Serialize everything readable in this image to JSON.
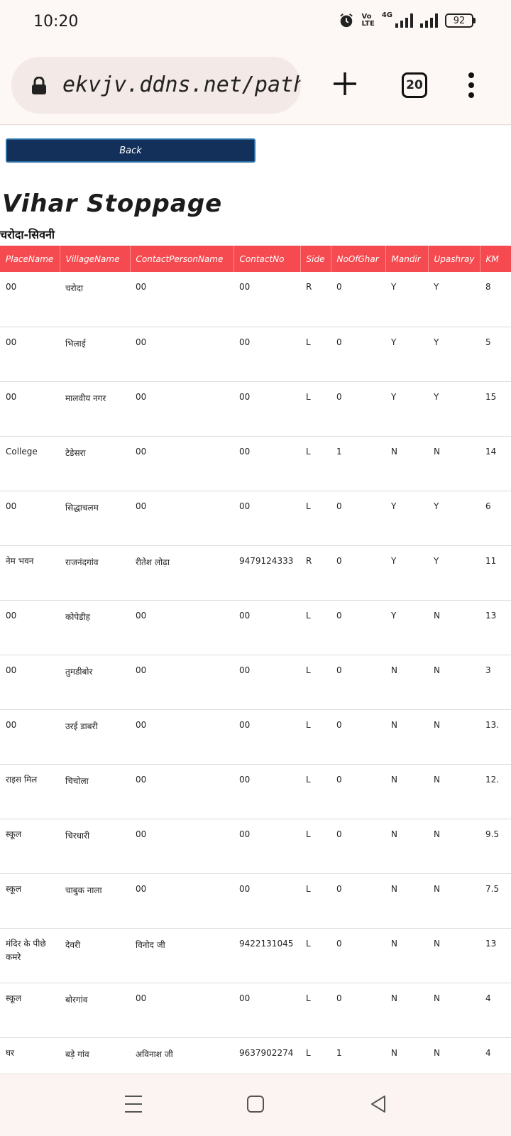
{
  "status_bar": {
    "time": "10:20",
    "volte": "Vo\nLTE",
    "network": "4G",
    "battery": "92",
    "icons": [
      "alarm-icon",
      "volte-icon",
      "signal-icon",
      "signal-icon",
      "battery-icon"
    ]
  },
  "browser": {
    "url": "ekvjv.ddns.net/pathshala",
    "tab_count": "20",
    "icons": [
      "lock-icon",
      "plus-icon",
      "tabs-icon",
      "more-vert-icon"
    ]
  },
  "page": {
    "back_label": "Back",
    "title": "Vihar Stoppage",
    "route": "चरोदा-सिवनी"
  },
  "table": {
    "headers": [
      "PlaceName",
      "VillageName",
      "ContactPersonName",
      "ContactNo",
      "Side",
      "NoOfGhar",
      "Mandir",
      "Upashray",
      "KM"
    ],
    "rows": [
      [
        "00",
        "चरोदा",
        "00",
        "00",
        "R",
        "0",
        "Y",
        "Y",
        "8"
      ],
      [
        "00",
        "भिलाई",
        "00",
        "00",
        "L",
        "0",
        "Y",
        "Y",
        "5"
      ],
      [
        "00",
        "मालवीय नगर",
        "00",
        "00",
        "L",
        "0",
        "Y",
        "Y",
        "15"
      ],
      [
        "College",
        "टेडेसरा",
        "00",
        "00",
        "L",
        "1",
        "N",
        "N",
        "14"
      ],
      [
        "00",
        "सिद्धाचलम",
        "00",
        "00",
        "L",
        "0",
        "Y",
        "Y",
        "6"
      ],
      [
        "नेम भवन",
        "राजनंदगांव",
        "रीतेश लोढ़ा",
        "9479124333",
        "R",
        "0",
        "Y",
        "Y",
        "11"
      ],
      [
        "00",
        "कोपेडीह",
        "00",
        "00",
        "L",
        "0",
        "Y",
        "N",
        "13"
      ],
      [
        "00",
        "तुमडीबोर",
        "00",
        "00",
        "L",
        "0",
        "N",
        "N",
        "3"
      ],
      [
        "00",
        "उरई डाबरी",
        "00",
        "00",
        "L",
        "0",
        "N",
        "N",
        "13."
      ],
      [
        "राइस मिल",
        "चिचोला",
        "00",
        "00",
        "L",
        "0",
        "N",
        "N",
        "12."
      ],
      [
        "स्कूल",
        "चिरधारी",
        "00",
        "00",
        "L",
        "0",
        "N",
        "N",
        "9.5"
      ],
      [
        "स्कूल",
        "चाबुक नाला",
        "00",
        "00",
        "L",
        "0",
        "N",
        "N",
        "7.5"
      ],
      [
        "मंदिर के पीछे कमरे",
        "देवरी",
        "विनोद जी",
        "9422131045",
        "L",
        "0",
        "N",
        "N",
        "13"
      ],
      [
        "स्कूल",
        "बोरगांव",
        "00",
        "00",
        "L",
        "0",
        "N",
        "N",
        "4"
      ],
      [
        "घर",
        "बड़े गांव",
        "अविनाश जी",
        "9637902274",
        "L",
        "1",
        "N",
        "N",
        "4"
      ]
    ]
  },
  "nav_bar": {
    "icons": [
      "recents-icon",
      "home-icon",
      "back-icon"
    ]
  }
}
